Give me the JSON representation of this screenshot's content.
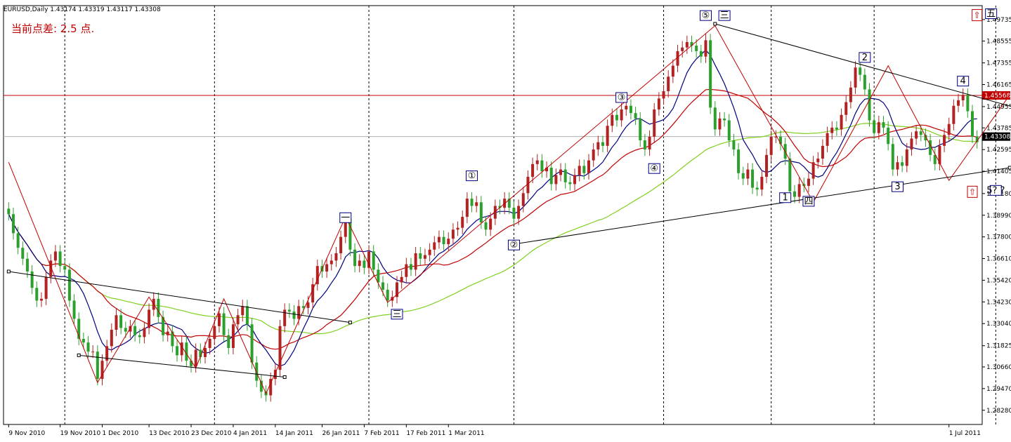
{
  "header": {
    "symbol": "EURUSD,Daily",
    "ohlc": "1.43174 1.43319 1.43117 1.43308"
  },
  "spread_text": "当前点差: 2.5 点.",
  "colors": {
    "bull": "#b22222",
    "bear": "#2ca02c",
    "ma_fast": "#000080",
    "ma_mid": "#c00000",
    "ma_slow": "#80d020",
    "zigzag": "#c00000",
    "trendline": "#000000",
    "hline": "#c00000",
    "current_line": "#b0b0b0",
    "current_tag": "#000000",
    "level_tag": "#c00000"
  },
  "chart_data": {
    "type": "candlestick",
    "symbol": "EURUSD",
    "timeframe": "Daily",
    "y_range": [
      1.275,
      1.505
    ],
    "price_labels": [
      "1.49735",
      "1.48555",
      "1.47355",
      "1.46165",
      "1.44955",
      "1.43785",
      "1.42595",
      "1.41405",
      "1.40180",
      "1.38990",
      "1.37800",
      "1.36610",
      "1.35420",
      "1.34230",
      "1.33040",
      "1.31825",
      "1.30660",
      "1.29470",
      "1.28280"
    ],
    "current_price": "1.43308",
    "marked_level": "1.45568",
    "x_labels": [
      {
        "i": 0,
        "t": "9 Nov 2010"
      },
      {
        "i": 11,
        "t": "19 Nov 2010"
      },
      {
        "i": 20,
        "t": "1 Dec 2010"
      },
      {
        "i": 30,
        "t": "13 Dec 2010"
      },
      {
        "i": 39,
        "t": "23 Dec 2010"
      },
      {
        "i": 48,
        "t": "4 Jan 2011"
      },
      {
        "i": 57,
        "t": "14 Jan 2011"
      },
      {
        "i": 67,
        "t": "26 Jan 2011"
      },
      {
        "i": 76,
        "t": "7 Feb 2011"
      },
      {
        "i": 85,
        "t": "17 Feb 2011"
      },
      {
        "i": 94,
        "t": "1 Mar 2011"
      },
      {
        "i": 201,
        "t": "1 Jul 2011"
      }
    ],
    "closes": [
      1.3905,
      1.38,
      1.372,
      1.366,
      1.359,
      1.35,
      1.343,
      1.344,
      1.356,
      1.365,
      1.37,
      1.362,
      1.36,
      1.343,
      1.333,
      1.322,
      1.32,
      1.315,
      1.315,
      1.3,
      1.31,
      1.318,
      1.327,
      1.335,
      1.328,
      1.326,
      1.329,
      1.324,
      1.323,
      1.328,
      1.338,
      1.344,
      1.334,
      1.324,
      1.326,
      1.318,
      1.313,
      1.32,
      1.31,
      1.307,
      1.316,
      1.312,
      1.317,
      1.322,
      1.329,
      1.336,
      1.324,
      1.317,
      1.33,
      1.335,
      1.34,
      1.33,
      1.309,
      1.299,
      1.293,
      1.291,
      1.3,
      1.305,
      1.329,
      1.338,
      1.337,
      1.333,
      1.34,
      1.339,
      1.342,
      1.352,
      1.362,
      1.359,
      1.363,
      1.365,
      1.369,
      1.378,
      1.388,
      1.371,
      1.362,
      1.365,
      1.361,
      1.37,
      1.36,
      1.353,
      1.349,
      1.343,
      1.345,
      1.353,
      1.356,
      1.363,
      1.36,
      1.369,
      1.366,
      1.368,
      1.371,
      1.375,
      1.378,
      1.374,
      1.377,
      1.382,
      1.383,
      1.389,
      1.399,
      1.395,
      1.397,
      1.386,
      1.382,
      1.388,
      1.395,
      1.394,
      1.399,
      1.394,
      1.388,
      1.395,
      1.402,
      1.411,
      1.418,
      1.42,
      1.414,
      1.416,
      1.407,
      1.412,
      1.415,
      1.408,
      1.407,
      1.412,
      1.417,
      1.413,
      1.42,
      1.426,
      1.43,
      1.428,
      1.439,
      1.445,
      1.442,
      1.448,
      1.45,
      1.446,
      1.443,
      1.431,
      1.426,
      1.433,
      1.448,
      1.454,
      1.458,
      1.466,
      1.472,
      1.48,
      1.482,
      1.485,
      1.483,
      1.48,
      1.477,
      1.486,
      1.449,
      1.437,
      1.443,
      1.442,
      1.431,
      1.426,
      1.413,
      1.41,
      1.415,
      1.405,
      1.404,
      1.411,
      1.423,
      1.433,
      1.433,
      1.429,
      1.421,
      1.403,
      1.4,
      1.407,
      1.406,
      1.41,
      1.419,
      1.421,
      1.428,
      1.435,
      1.438,
      1.437,
      1.445,
      1.452,
      1.46,
      1.471,
      1.467,
      1.459,
      1.442,
      1.435,
      1.441,
      1.438,
      1.429,
      1.415,
      1.419,
      1.417,
      1.426,
      1.432,
      1.436,
      1.434,
      1.431,
      1.423,
      1.418,
      1.428,
      1.434,
      1.44,
      1.45,
      1.453,
      1.456,
      1.447,
      1.433,
      1.43
    ],
    "zigzag": [
      {
        "i": 0,
        "p": 1.419
      },
      {
        "i": 19,
        "p": 1.298
      },
      {
        "i": 30,
        "p": 1.345
      },
      {
        "i": 40,
        "p": 1.306
      },
      {
        "i": 46,
        "p": 1.344
      },
      {
        "i": 55,
        "p": 1.292
      },
      {
        "i": 72,
        "p": 1.389
      },
      {
        "i": 81,
        "p": 1.342
      },
      {
        "i": 151,
        "p": 1.494
      },
      {
        "i": 172,
        "p": 1.397
      },
      {
        "i": 188,
        "p": 1.472
      },
      {
        "i": 201,
        "p": 1.409
      },
      {
        "i": 214,
        "p": 1.456
      }
    ],
    "trendlines": [
      {
        "a": {
          "i": 0,
          "p": 1.359
        },
        "b": {
          "i": 73,
          "p": 1.331
        }
      },
      {
        "a": {
          "i": 15,
          "p": 1.313
        },
        "b": {
          "i": 59,
          "p": 1.301
        }
      },
      {
        "a": {
          "i": 108,
          "p": 1.374
        },
        "b": {
          "i": 214,
          "p": 1.416
        }
      },
      {
        "a": {
          "i": 151,
          "p": 1.495
        },
        "b": {
          "i": 218,
          "p": 1.447
        }
      }
    ],
    "wave_labels": [
      {
        "i": 72,
        "p": 1.387,
        "t": "一"
      },
      {
        "i": 83,
        "p": 1.334,
        "t": "三"
      },
      {
        "i": 99,
        "p": 1.41,
        "t": "①"
      },
      {
        "i": 108,
        "p": 1.372,
        "t": "②"
      },
      {
        "i": 131,
        "p": 1.453,
        "t": "③"
      },
      {
        "i": 138,
        "p": 1.414,
        "t": "④"
      },
      {
        "i": 149,
        "p": 1.498,
        "t": "⑤"
      },
      {
        "i": 153,
        "p": 1.498,
        "t": "三"
      },
      {
        "i": 166,
        "p": 1.398,
        "t": "1"
      },
      {
        "i": 171,
        "p": 1.396,
        "t": "四"
      },
      {
        "i": 183,
        "p": 1.475,
        "t": "2"
      },
      {
        "i": 190,
        "p": 1.404,
        "t": "3"
      },
      {
        "i": 204,
        "p": 1.462,
        "t": "4"
      },
      {
        "i": 210,
        "p": 1.499,
        "t": "五"
      },
      {
        "i": 211,
        "p": 1.402,
        "t": "5? ?"
      }
    ],
    "level_arrows": [
      {
        "i": 207,
        "p": 1.499
      },
      {
        "i": 206,
        "p": 1.402
      }
    ],
    "grid": false,
    "legend": "none"
  }
}
